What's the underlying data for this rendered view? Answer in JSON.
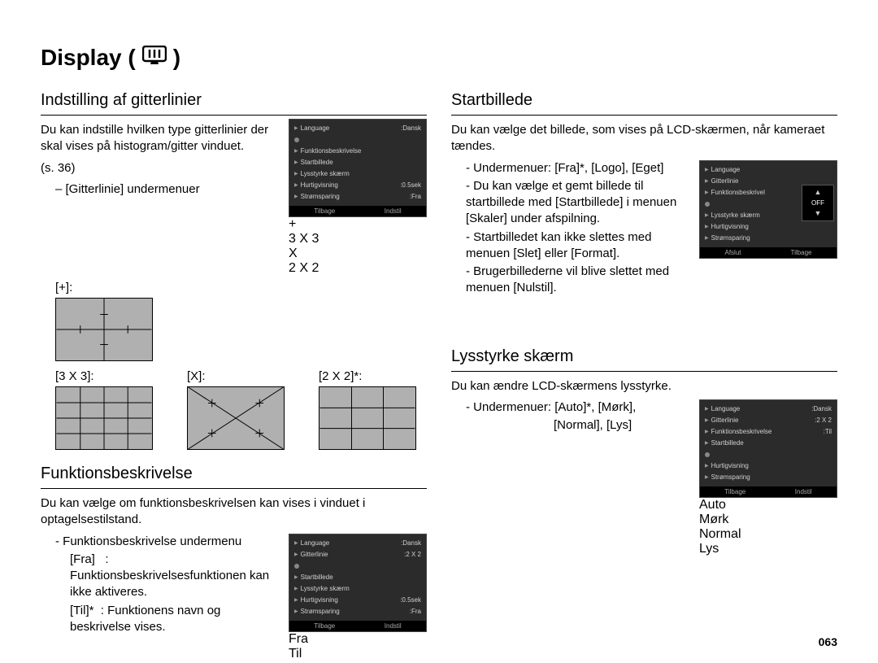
{
  "page": {
    "title": "Display (",
    "title_close": " )",
    "number": "063"
  },
  "colors": {
    "text": "#000000",
    "bg": "#ffffff",
    "thumb_bg": "#b0b0b0",
    "menu_bg": "#2b2b2b",
    "menu_text": "#d0d0d0",
    "menu_bar": "#000000",
    "check": "#66cc66"
  },
  "left": {
    "sec1": {
      "heading": "Indstilling af gitterlinier",
      "p1": "Du kan indstille hvilken type gitterlinier der skal vises på histogram/gitter vinduet.",
      "p2": "(s. 36)",
      "sub": "– [Gitterlinie] undermenuer",
      "labels": {
        "plus": "[+]:",
        "g33": "[3 X 3]:",
        "x": "[X]:",
        "g22": "[2 X 2]*:"
      }
    },
    "sec2": {
      "heading": "Funktionsbeskrivelse",
      "p1": "Du kan vælge om funktionsbeskrivelsen kan vises i vinduet i optagelsestilstand.",
      "sub": "- Funktionsbeskrivelse undermenu",
      "line_fra": "[Fra]   : Funktionsbeskrivelsesfunktionen kan ikke aktiveres.",
      "line_til": "[Til]*  : Funktionens navn og beskrivelse vises."
    }
  },
  "right": {
    "sec1": {
      "heading": "Startbillede",
      "p1": "Du kan vælge det billede, som vises på LCD-skærmen, når kameraet tændes.",
      "b1": "- Undermenuer: [Fra]*, [Logo], [Eget]",
      "b2": "- Du kan vælge et gemt billede til startbillede med [Startbillede] i menuen [Skaler] under afspilning.",
      "b3": "- Startbilledet kan ikke slettes med menuen [Slet] eller [Format].",
      "b4": "- Brugerbillederne vil blive slettet med menuen [Nulstil]."
    },
    "sec2": {
      "heading": "Lysstyrke skærm",
      "p1": "Du kan ændre LCD-skærmens lysstyrke.",
      "b1a": "- Undermenuer: [Auto]*, [Mørk],",
      "b1b": "[Normal], [Lys]"
    }
  },
  "menus": {
    "m1": {
      "items": [
        {
          "label": "Language",
          "val": ":Dansk"
        },
        {
          "label": "",
          "val": "",
          "dot": true
        },
        {
          "label": "Funktionsbeskrivelse",
          "val": ""
        },
        {
          "label": "Startbillede",
          "val": ""
        },
        {
          "label": "Lysstyrke skærm",
          "val": ""
        },
        {
          "label": "Hurtigvisning",
          "val": ":0.5sek"
        },
        {
          "label": "Strømsparing",
          "val": ":Fra"
        }
      ],
      "popup": [
        "+",
        "3 X 3",
        "X",
        "2 X 2"
      ],
      "popup_selected": 3,
      "bar": [
        "Tilbage",
        "Indstil"
      ]
    },
    "m2": {
      "items": [
        {
          "label": "Language",
          "val": ":Dansk"
        },
        {
          "label": "Gitterlinie",
          "val": ":2 X 2"
        },
        {
          "label": "",
          "val": "",
          "dot": true
        },
        {
          "label": "Startbillede",
          "val": ""
        },
        {
          "label": "Lysstyrke skærm",
          "val": ""
        },
        {
          "label": "Hurtigvisning",
          "val": ":0.5sek"
        },
        {
          "label": "Strømsparing",
          "val": ":Fra"
        }
      ],
      "popup": [
        "Fra",
        "Til"
      ],
      "popup_selected": 1,
      "bar": [
        "Tilbage",
        "Indstil"
      ]
    },
    "m3": {
      "items": [
        {
          "label": "Language",
          "val": ""
        },
        {
          "label": "Gitterlinie",
          "val": ""
        },
        {
          "label": "Funktionsbeskrivel",
          "val": ""
        },
        {
          "label": "",
          "val": "",
          "dot": true
        },
        {
          "label": "Lysstyrke skærm",
          "val": ""
        },
        {
          "label": "Hurtigvisning",
          "val": ""
        },
        {
          "label": "Strømsparing",
          "val": ""
        }
      ],
      "off_label": "OFF",
      "bar": [
        "Afslut",
        "Tilbage"
      ]
    },
    "m4": {
      "items": [
        {
          "label": "Language",
          "val": ":Dansk"
        },
        {
          "label": "Gitterlinie",
          "val": ":2 X 2"
        },
        {
          "label": "Funktionsbeskrivelse",
          "val": ":Til"
        },
        {
          "label": "Startbillede",
          "val": ""
        },
        {
          "label": "",
          "val": "",
          "dot": true
        },
        {
          "label": "Hurtigvisning",
          "val": ""
        },
        {
          "label": "Strømsparing",
          "val": ""
        }
      ],
      "popup": [
        "Auto",
        "Mørk",
        "Normal",
        "Lys"
      ],
      "popup_selected": 0,
      "bar": [
        "Tilbage",
        "Indstil"
      ]
    }
  }
}
